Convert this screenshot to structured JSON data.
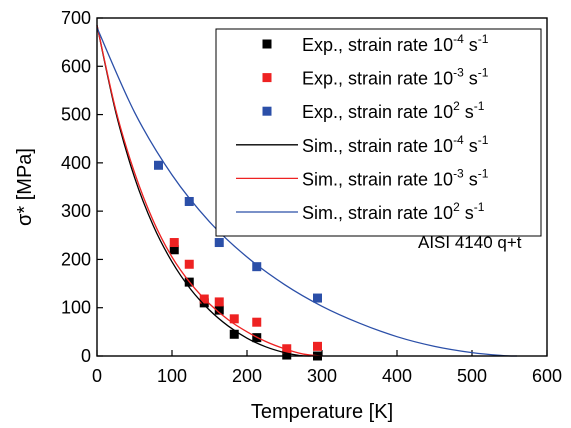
{
  "chart_data": {
    "type": "scatter",
    "xlabel": "Temperature [K]",
    "ylabel": "σ* [MPa]",
    "xlim": [
      0,
      600
    ],
    "ylim": [
      0,
      700
    ],
    "xticks": [
      0,
      100,
      200,
      300,
      400,
      500,
      600
    ],
    "yticks": [
      0,
      100,
      200,
      300,
      400,
      500,
      600,
      700
    ],
    "grid": false,
    "legend_position": "top-right",
    "annotation": "AISI 4140 q+t",
    "series": [
      {
        "name": "Exp., strain rate 10-4 s-1",
        "legend_base": "Exp., strain rate 10",
        "legend_exp": "-4",
        "legend_unit": " s",
        "legend_unit_exp": "-1",
        "kind": "markers",
        "color": "#000000",
        "x": [
          103,
          123,
          143,
          163,
          183,
          213,
          253,
          294
        ],
        "y": [
          220,
          153,
          110,
          95,
          45,
          38,
          2,
          0
        ]
      },
      {
        "name": "Exp., strain rate 10-3 s-1",
        "legend_base": "Exp., strain rate 10",
        "legend_exp": "-3",
        "legend_unit": " s",
        "legend_unit_exp": "-1",
        "kind": "markers",
        "color": "#ee2222",
        "x": [
          103,
          123,
          143,
          163,
          183,
          213,
          253,
          294
        ],
        "y": [
          235,
          190,
          118,
          112,
          77,
          70,
          15,
          20
        ]
      },
      {
        "name": "Exp., strain rate 10^2 s-1",
        "legend_base": "Exp., strain rate 10",
        "legend_exp": "2",
        "legend_unit": " s",
        "legend_unit_exp": "-1",
        "kind": "markers",
        "color": "#2b4fa8",
        "x": [
          82,
          123,
          163,
          213,
          294
        ],
        "y": [
          395,
          320,
          235,
          185,
          120
        ]
      },
      {
        "name": "Sim., strain rate 10-4 s-1",
        "legend_base": "Sim., strain rate 10",
        "legend_exp": "-4",
        "legend_unit": " s",
        "legend_unit_exp": "-1",
        "kind": "line",
        "color": "#000000",
        "x": [
          0,
          25,
          50,
          75,
          100,
          125,
          150,
          175,
          200,
          225,
          250,
          270,
          285
        ],
        "y": [
          685,
          505,
          370,
          270,
          195,
          138,
          95,
          62,
          37,
          19,
          7,
          1,
          0
        ]
      },
      {
        "name": "Sim., strain rate 10-3 s-1",
        "legend_base": "Sim., strain rate 10",
        "legend_exp": "-3",
        "legend_unit": " s",
        "legend_unit_exp": "-1",
        "kind": "line",
        "color": "#ee2222",
        "x": [
          0,
          25,
          50,
          75,
          100,
          125,
          150,
          175,
          200,
          225,
          250,
          275,
          300
        ],
        "y": [
          685,
          510,
          380,
          280,
          205,
          150,
          108,
          75,
          50,
          30,
          15,
          4,
          0
        ]
      },
      {
        "name": "Sim., strain rate 10^2 s-1",
        "legend_base": "Sim., strain rate 10",
        "legend_exp": "2",
        "legend_unit": " s",
        "legend_unit_exp": "-1",
        "kind": "line",
        "color": "#2b4fa8",
        "x": [
          0,
          50,
          100,
          150,
          200,
          250,
          300,
          350,
          400,
          450,
          500,
          540,
          560
        ],
        "y": [
          680,
          505,
          375,
          278,
          205,
          148,
          103,
          68,
          40,
          20,
          7,
          1,
          0
        ]
      }
    ]
  }
}
